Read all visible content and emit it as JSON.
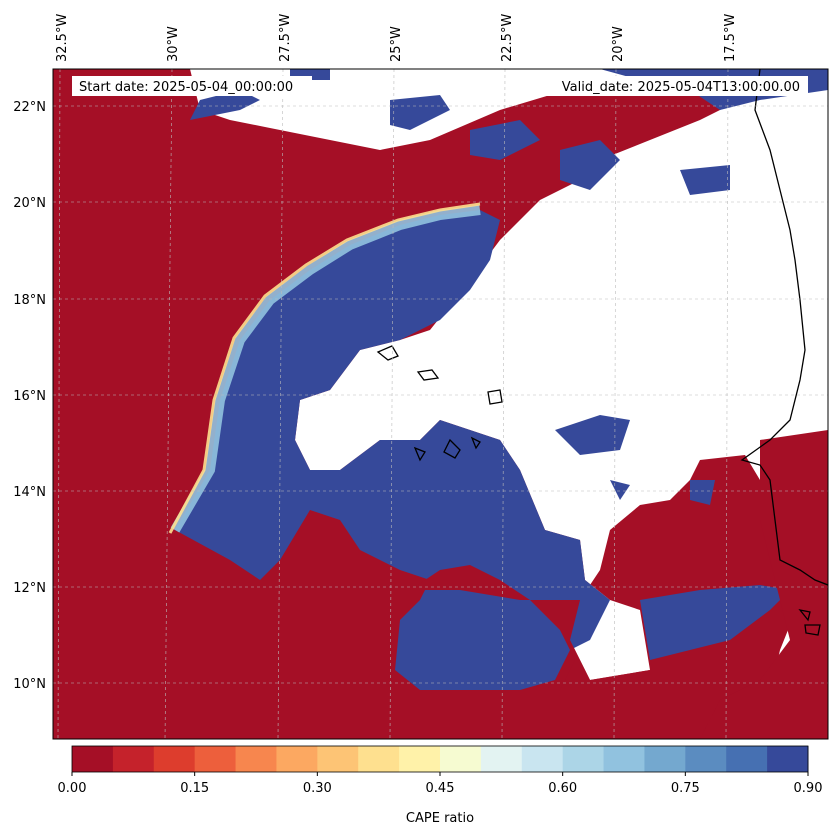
{
  "map": {
    "start_date": "Start date: 2025-05-04_00:00:00",
    "valid_date": "Valid_date: 2025-05-04T13:00:00.00",
    "lon_ticks": [
      "32.5°W",
      "30°W",
      "27.5°W",
      "25°W",
      "22.5°W",
      "20°W",
      "17.5°W"
    ],
    "lat_ticks": [
      "22°N",
      "20°N",
      "18°N",
      "16°N",
      "14°N",
      "12°N",
      "10°N"
    ]
  },
  "colorbar": {
    "label": "CAPE ratio",
    "tick_labels": [
      "0.00",
      "0.15",
      "0.30",
      "0.45",
      "0.60",
      "0.75",
      "0.90"
    ],
    "colors": [
      "#a50f26",
      "#c5222b",
      "#dd3d2d",
      "#ed5f3c",
      "#f7864e",
      "#fca861",
      "#fdc475",
      "#fee08f",
      "#fff2a9",
      "#f6fbd1",
      "#e3f3f2",
      "#c9e5f0",
      "#acd5e7",
      "#91c2df",
      "#74a8cf",
      "#5b8cc0",
      "#4670b2",
      "#36499a"
    ]
  }
}
